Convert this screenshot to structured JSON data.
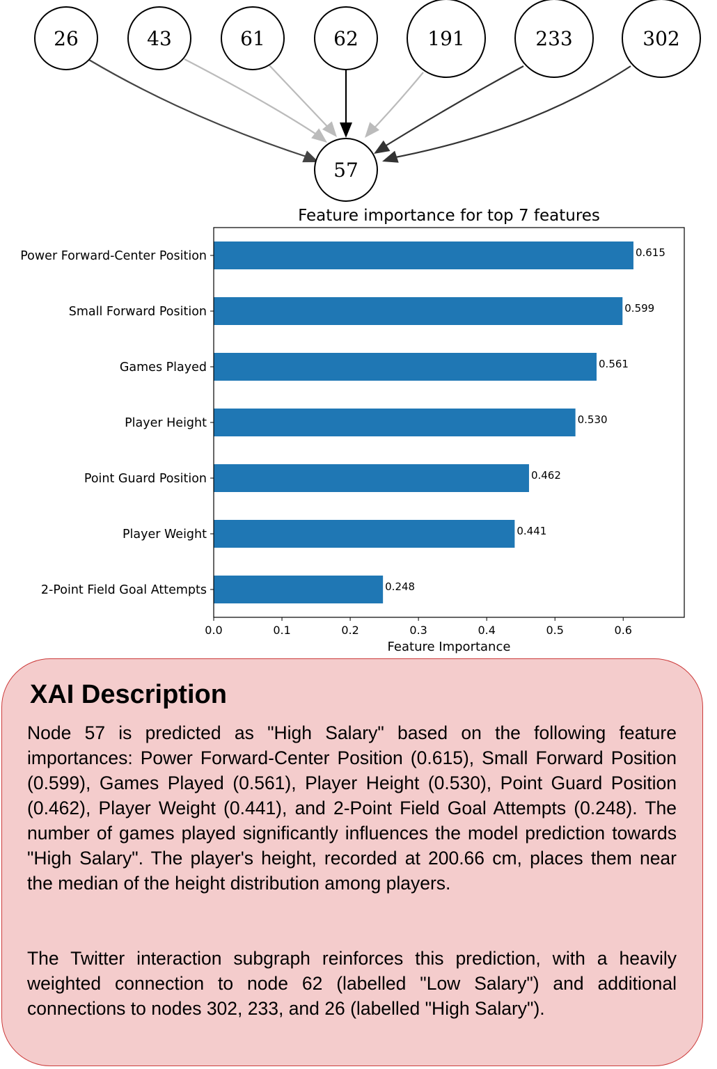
{
  "graph": {
    "target": {
      "label": "57"
    },
    "neighbors": [
      {
        "label": "26",
        "edge_color": "#444444"
      },
      {
        "label": "43",
        "edge_color": "#bbbbbb"
      },
      {
        "label": "61",
        "edge_color": "#bbbbbb"
      },
      {
        "label": "62",
        "edge_color": "#000000"
      },
      {
        "label": "191",
        "edge_color": "#bbbbbb"
      },
      {
        "label": "233",
        "edge_color": "#333333"
      },
      {
        "label": "302",
        "edge_color": "#333333"
      }
    ]
  },
  "chart_data": {
    "type": "bar",
    "orientation": "horizontal",
    "title": "Feature importance for top 7 features",
    "xlabel": "Feature Importance",
    "ylabel": "",
    "categories": [
      "Power Forward-Center Position",
      "Small Forward Position",
      "Games Played",
      "Player Height",
      "Point Guard Position",
      "Player Weight",
      "2-Point Field Goal Attempts"
    ],
    "values": [
      0.615,
      0.599,
      0.561,
      0.53,
      0.462,
      0.441,
      0.248
    ],
    "value_labels": [
      "0.615",
      "0.599",
      "0.561",
      "0.530",
      "0.462",
      "0.441",
      "0.248"
    ],
    "xticks": [
      "0.0",
      "0.1",
      "0.2",
      "0.3",
      "0.4",
      "0.5",
      "0.6"
    ],
    "xlim": [
      0,
      0.6895
    ],
    "bar_color": "#1f77b4",
    "grid": false
  },
  "xai": {
    "title": "XAI Description",
    "paragraph1": "Node 57 is predicted as \"High Salary\" based on the following feature importances: Power Forward-Center Position (0.615), Small Forward Position (0.599), Games Played (0.561), Player Height (0.530), Point Guard Position (0.462), Player Weight (0.441), and 2-Point Field Goal Attempts (0.248). The number of games played significantly influences the model prediction towards \"High Salary\". The player's height, recorded at 200.66 cm, places them near the median of the height distribution among players.",
    "paragraph2": "The Twitter interaction subgraph reinforces this prediction, with a heavily weighted connection to node 62 (labelled \"Low Salary\") and additional connections to nodes 302, 233, and 26 (labelled \"High Salary\")."
  }
}
